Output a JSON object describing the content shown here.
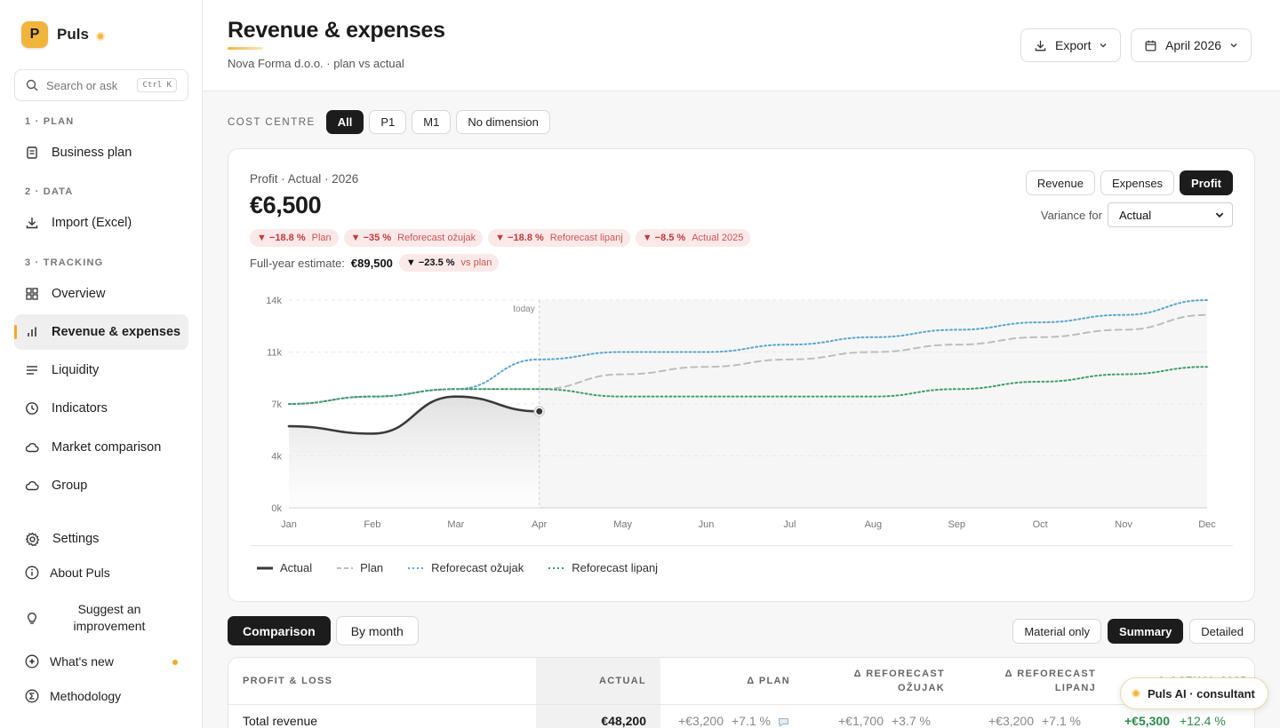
{
  "brand": {
    "logo_letter": "P",
    "name": "Puls"
  },
  "search": {
    "placeholder": "Search or ask",
    "shortcut": "Ctrl K"
  },
  "sidebar": {
    "sections": [
      "1 · PLAN",
      "2 · DATA",
      "3 · TRACKING"
    ],
    "items": [
      {
        "label": "Business plan",
        "icon": "document-icon"
      },
      {
        "label": "Import (Excel)",
        "icon": "download-icon"
      },
      {
        "label": "Overview",
        "icon": "grid-icon"
      },
      {
        "label": "Revenue & expenses",
        "icon": "bar-chart-icon",
        "active": true
      },
      {
        "label": "Liquidity",
        "icon": "lines-icon"
      },
      {
        "label": "Indicators",
        "icon": "clock-icon"
      },
      {
        "label": "Market comparison",
        "icon": "cloud-icon"
      },
      {
        "label": "Group",
        "icon": "cloud-icon"
      }
    ],
    "bottom": [
      {
        "label": "Settings",
        "icon": "gear-icon"
      },
      {
        "label": "About Puls",
        "icon": "info-icon"
      },
      {
        "label": "Suggest an improvement",
        "icon": "lightbulb-icon"
      },
      {
        "label": "What's new",
        "icon": "sparkle-icon"
      },
      {
        "label": "Methodology",
        "icon": "sigma-icon"
      }
    ]
  },
  "header": {
    "title": "Revenue & expenses",
    "subtitle": "Nova Forma d.o.o. · plan vs actual",
    "export_label": "Export",
    "period_label": "April 2026"
  },
  "cost_centre": {
    "label": "COST CENTRE",
    "options": [
      "All",
      "P1",
      "M1",
      "No dimension"
    ],
    "selected": "All"
  },
  "kpi": {
    "heading": "Profit · Actual · 2026",
    "value": "€6,500",
    "variances": [
      {
        "value": "▼ −18.8 %",
        "label": "Plan"
      },
      {
        "value": "▼ −35 %",
        "label": "Reforecast ožujak"
      },
      {
        "value": "▼ −18.8 %",
        "label": "Reforecast lipanj"
      },
      {
        "value": "▼ −8.5 %",
        "label": "Actual 2025"
      }
    ],
    "full_year_label": "Full-year estimate:",
    "full_year_value": "€89,500",
    "full_year_variance": "▼ −23.5 %",
    "full_year_variance_label": "vs plan"
  },
  "metric_toggle": {
    "options": [
      "Revenue",
      "Expenses",
      "Profit"
    ],
    "selected": "Profit"
  },
  "variance_for": {
    "label": "Variance for",
    "value": "Actual"
  },
  "chart_data": {
    "type": "line",
    "x": [
      "Jan",
      "Feb",
      "Mar",
      "Apr",
      "May",
      "Jun",
      "Jul",
      "Aug",
      "Sep",
      "Oct",
      "Nov",
      "Dec"
    ],
    "ylim": [
      0,
      14000
    ],
    "yticks": [
      "0k",
      "4k",
      "7k",
      "11k",
      "14k"
    ],
    "ytick_values": [
      0,
      3500,
      7000,
      10500,
      14000
    ],
    "today_label": "today",
    "today_index": 3,
    "grid": true,
    "series": [
      {
        "name": "Actual",
        "color": "#3a3a3c",
        "style": "solid",
        "values": [
          5500,
          5000,
          7500,
          6500,
          null,
          null,
          null,
          null,
          null,
          null,
          null,
          null
        ]
      },
      {
        "name": "Plan",
        "color": "#bdbdbd",
        "style": "dashed",
        "values": [
          7000,
          7500,
          8000,
          8000,
          9000,
          9500,
          10000,
          10500,
          11000,
          11500,
          12000,
          13000
        ]
      },
      {
        "name": "Reforecast ožujak",
        "color": "#5aa6cf",
        "style": "dotted",
        "values": [
          7000,
          7500,
          8000,
          10000,
          10500,
          10500,
          11000,
          11500,
          12000,
          12500,
          13000,
          14000
        ]
      },
      {
        "name": "Reforecast lipanj",
        "color": "#3f9e6a",
        "style": "dotted",
        "values": [
          7000,
          7500,
          8000,
          8000,
          7500,
          7500,
          7500,
          7500,
          8000,
          8500,
          9000,
          9500
        ]
      }
    ]
  },
  "table_tabs": {
    "options": [
      "Comparison",
      "By month"
    ],
    "selected": "Comparison"
  },
  "table_modes": {
    "options": [
      "Material only",
      "Summary",
      "Detailed"
    ],
    "selected": "Summary"
  },
  "table": {
    "headers": [
      "PROFIT & LOSS",
      "ACTUAL",
      "Δ PLAN",
      "Δ REFORECAST OŽUJAK",
      "Δ REFORECAST LIPANJ",
      "Δ ACTUAL 2025"
    ],
    "rows": [
      {
        "label": "Total revenue",
        "actual": "€48,200",
        "plan_abs": "+€3,200",
        "plan_pct": "+7.1 %",
        "ro_abs": "+€1,700",
        "ro_pct": "+3.7 %",
        "rl_abs": "+€3,200",
        "rl_pct": "+7.1 %",
        "a25_abs": "+€5,300",
        "a25_pct": "+12.4 %"
      }
    ]
  },
  "assistant": {
    "label": "Puls AI · consultant"
  }
}
